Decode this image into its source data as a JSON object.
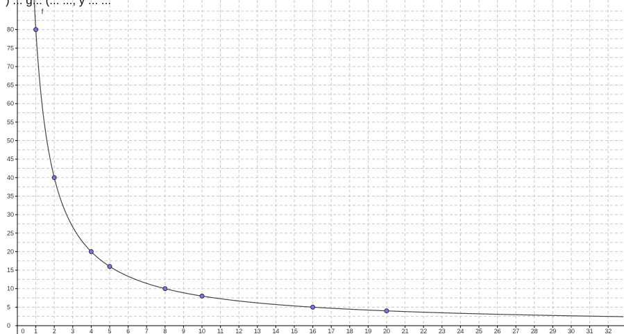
{
  "header": {
    "text": ") ... g... (... ..., y ... ..."
  },
  "chart_data": {
    "type": "line",
    "title": "",
    "xlabel": "",
    "ylabel": "",
    "function_label": "f",
    "xlim": [
      0,
      32.8
    ],
    "ylim": [
      0,
      85
    ],
    "x_ticks": [
      0,
      1,
      2,
      3,
      4,
      5,
      6,
      7,
      8,
      9,
      10,
      11,
      12,
      13,
      14,
      15,
      16,
      17,
      18,
      19,
      20,
      21,
      22,
      23,
      24,
      25,
      26,
      27,
      28,
      29,
      30,
      31,
      32
    ],
    "y_ticks": [
      0,
      5,
      10,
      15,
      20,
      25,
      30,
      35,
      40,
      45,
      50,
      55,
      60,
      65,
      70,
      75,
      80
    ],
    "curve": {
      "expression": "y = 80 / x",
      "constant": 80
    },
    "points": [
      {
        "x": 1,
        "y": 80
      },
      {
        "x": 2,
        "y": 40
      },
      {
        "x": 4,
        "y": 20
      },
      {
        "x": 5,
        "y": 16
      },
      {
        "x": 8,
        "y": 10
      },
      {
        "x": 10,
        "y": 8
      },
      {
        "x": 16,
        "y": 5
      },
      {
        "x": 20,
        "y": 4
      }
    ],
    "grid": true,
    "colors": {
      "curve": "#444444",
      "point_fill": "#7a7ad6",
      "point_stroke": "#2a2a5a",
      "grid": "#c8c8c8"
    }
  }
}
